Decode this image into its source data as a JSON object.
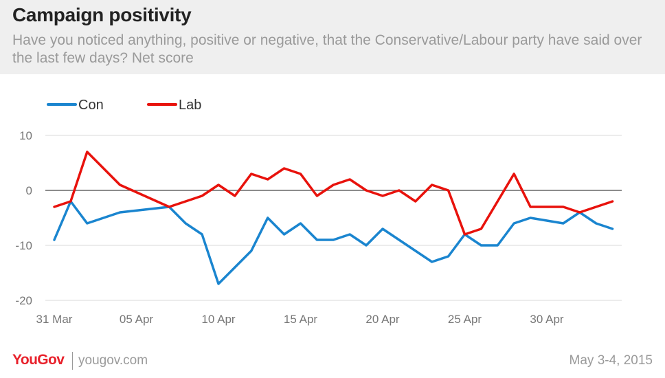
{
  "header": {
    "title": "Campaign positivity",
    "subtitle": "Have you noticed anything, positive or negative, that the Conservative/Labour party have said over the last few days? Net score"
  },
  "footer": {
    "brand": "YouGov",
    "site": "yougov.com",
    "date": "May 3-4, 2015"
  },
  "colors": {
    "con": "#1a85cf",
    "lab": "#e8120c",
    "zero_line": "#666666",
    "grid": "#d9d9d9"
  },
  "chart_data": {
    "type": "line",
    "title": "Campaign positivity",
    "xlabel": "",
    "ylabel": "",
    "x": [
      0,
      1,
      2,
      4,
      7,
      8,
      9,
      10,
      11,
      12,
      13,
      14,
      15,
      16,
      17,
      18,
      19,
      20,
      21,
      22,
      23,
      24,
      25,
      26,
      27,
      28,
      29,
      30,
      31,
      32,
      33,
      34
    ],
    "x_ticks": [
      {
        "pos": 0,
        "label": "31 Mar"
      },
      {
        "pos": 5,
        "label": "05 Apr"
      },
      {
        "pos": 10,
        "label": "10 Apr"
      },
      {
        "pos": 15,
        "label": "15 Apr"
      },
      {
        "pos": 20,
        "label": "20 Apr"
      },
      {
        "pos": 25,
        "label": "25 Apr"
      },
      {
        "pos": 30,
        "label": "30 Apr"
      }
    ],
    "xlim": [
      0,
      34.5
    ],
    "ylim": [
      -20,
      10
    ],
    "y_ticks": [
      10,
      0,
      -10,
      -20
    ],
    "grid": true,
    "legend": "top-left",
    "series": [
      {
        "name": "Con",
        "color": "#1a85cf",
        "values": [
          -9,
          -2,
          -6,
          -4,
          -3,
          -6,
          -8,
          -17,
          -14,
          -11,
          -5,
          -8,
          -6,
          -9,
          -9,
          -8,
          -10,
          -7,
          -9,
          -11,
          -13,
          -12,
          -8,
          -10,
          -10,
          -6,
          -5,
          -5.5,
          -6,
          -4,
          -6,
          -7
        ]
      },
      {
        "name": "Lab",
        "color": "#e8120c",
        "values": [
          -3,
          -2,
          7,
          1,
          -3,
          -2,
          -1,
          1,
          -1,
          3,
          2,
          4,
          3,
          -1,
          1,
          2,
          0,
          -1,
          0,
          -2,
          1,
          0,
          -8,
          -7,
          -2,
          3,
          -3,
          -3,
          -3,
          -4,
          -3,
          -2
        ]
      }
    ]
  }
}
